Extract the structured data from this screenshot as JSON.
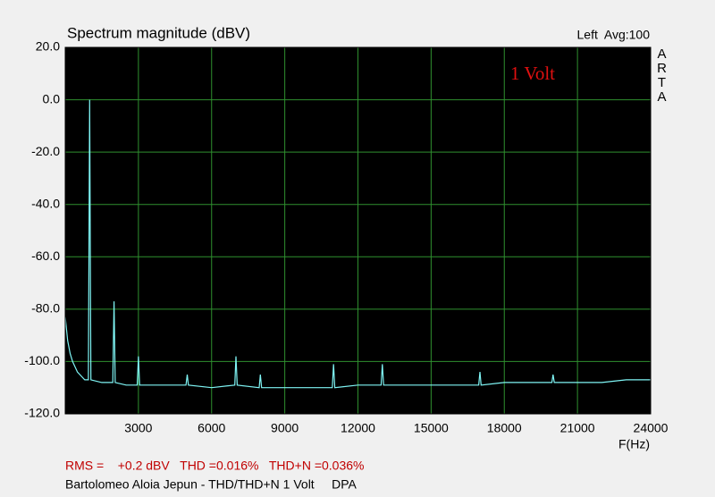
{
  "chart_data": {
    "type": "line",
    "title": "Spectrum magnitude (dBV)",
    "subtitle": "Left  Avg:100",
    "watermark": "ARTA",
    "annotation": "1 Volt",
    "xlabel": "F(Hz)",
    "footer": [
      "RMS =    +0.2 dBV   THD =0.016%   THD+N =0.036%",
      "Bartolomeo Aloia Jepun - THD/THD+N 1 Volt     DPA"
    ],
    "x": [
      0,
      100,
      200,
      300,
      400,
      500,
      600,
      700,
      800,
      950,
      1000,
      1050,
      1500,
      1950,
      2000,
      2050,
      2500,
      2950,
      3000,
      3050,
      4000,
      4950,
      5000,
      5050,
      6000,
      6950,
      7000,
      7050,
      7950,
      8000,
      8050,
      9000,
      10000,
      10950,
      11000,
      11050,
      12000,
      12950,
      13000,
      13050,
      14000,
      15000,
      16000,
      16950,
      17000,
      17050,
      18000,
      19000,
      19950,
      20000,
      20050,
      21000,
      22000,
      23000,
      24000
    ],
    "series": [
      {
        "name": "Left",
        "color": "#7ff5f5",
        "values": [
          -83,
          -92,
          -97,
          -100,
          -102,
          -104,
          -105,
          -106,
          -107,
          -107,
          0,
          -107,
          -108,
          -108,
          -77,
          -108,
          -109,
          -109,
          -98,
          -109,
          -109,
          -109,
          -105,
          -109,
          -110,
          -109,
          -98,
          -109,
          -110,
          -105,
          -110,
          -110,
          -110,
          -110,
          -101,
          -110,
          -109,
          -109,
          -101,
          -109,
          -109,
          -109,
          -109,
          -109,
          -104,
          -109,
          -108,
          -108,
          -108,
          -105,
          -108,
          -108,
          -108,
          -107,
          -107
        ]
      }
    ],
    "xlim": [
      0,
      24000
    ],
    "xticks": [
      3000,
      6000,
      9000,
      12000,
      15000,
      18000,
      21000,
      24000
    ],
    "ylim": [
      -120,
      20
    ],
    "yticks": [
      {
        "value": -120,
        "label": "-120.0"
      },
      {
        "value": -100,
        "label": "-100.0"
      },
      {
        "value": -80,
        "label": "-80.0"
      },
      {
        "value": -60,
        "label": "-60.0"
      },
      {
        "value": -40,
        "label": "-40.0"
      },
      {
        "value": -20,
        "label": "-20.0"
      },
      {
        "value": 0,
        "label": "0.0"
      },
      {
        "value": 20,
        "label": "20.0"
      }
    ],
    "grid": true,
    "grid_color": "#2f8f2f",
    "plot_background": "#000000",
    "annotation_color": "#e01010",
    "footer_colors": [
      "#c00000",
      "#000000"
    ]
  }
}
